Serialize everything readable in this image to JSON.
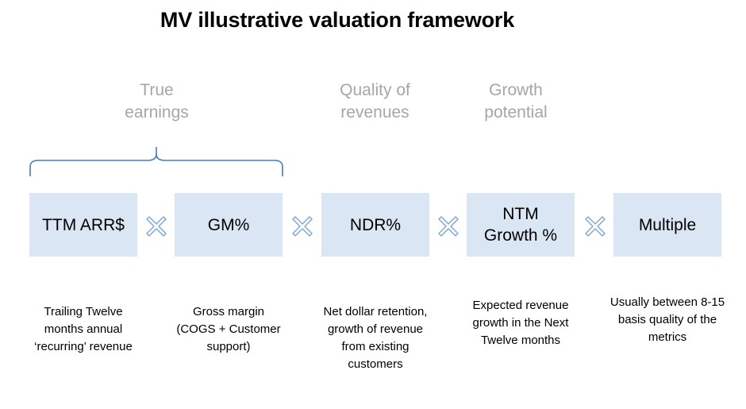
{
  "title": "MV illustrative valuation framework",
  "categories": [
    {
      "label": "True\nearnings"
    },
    {
      "label": "Quality of\nrevenues"
    },
    {
      "label": "Growth\npotential"
    }
  ],
  "boxes": [
    {
      "label": "TTM ARR$"
    },
    {
      "label": "GM%"
    },
    {
      "label": "NDR%"
    },
    {
      "label": "NTM\nGrowth %"
    },
    {
      "label": "Multiple"
    }
  ],
  "descriptions": [
    {
      "text": "Trailing Twelve\nmonths annual\n‘recurring’ revenue"
    },
    {
      "text": "Gross margin\n(COGS + Customer\nsupport)"
    },
    {
      "text": "Net dollar retention,\ngrowth of revenue\nfrom existing\ncustomers"
    },
    {
      "text": "Expected revenue\ngrowth in the Next\nTwelve months"
    },
    {
      "text": "Usually between 8-15\nbasis quality of the\nmetrics"
    }
  ],
  "colors": {
    "box_fill": "#dae6f3",
    "brace": "#4a78c0",
    "times_stroke": "#7aa6d6",
    "category_text": "#a6a6a6"
  },
  "icons": {
    "operator": "multiply-icon",
    "grouping": "curly-brace-icon"
  }
}
